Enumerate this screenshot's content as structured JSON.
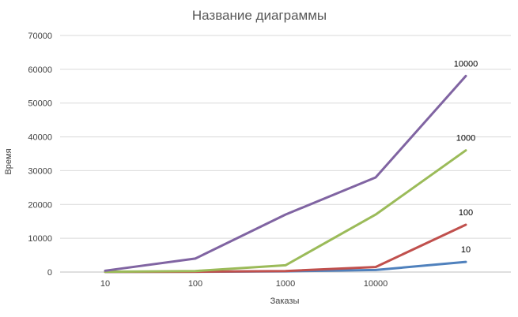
{
  "chart_data": {
    "type": "line",
    "title": "Название диаграммы",
    "xlabel": "Заказы",
    "ylabel": "Время",
    "categories": [
      "10",
      "100",
      "1000",
      "10000",
      ""
    ],
    "x_tick_labels": [
      "10",
      "100",
      "1000",
      "10000"
    ],
    "ylim": [
      0,
      70000
    ],
    "y_ticks": [
      0,
      10000,
      20000,
      30000,
      40000,
      50000,
      60000,
      70000
    ],
    "y_tick_labels": [
      "0",
      "10000",
      "20000",
      "30000",
      "40000",
      "50000",
      "60000",
      "70000"
    ],
    "grid": true,
    "legend": "none",
    "series": [
      {
        "name": "10",
        "color": "#4f81bd",
        "values": [
          50,
          100,
          200,
          600,
          3000
        ]
      },
      {
        "name": "100",
        "color": "#c0504d",
        "values": [
          50,
          100,
          300,
          1500,
          14000
        ]
      },
      {
        "name": "1000",
        "color": "#9bbb59",
        "values": [
          100,
          300,
          2000,
          17000,
          36000
        ]
      },
      {
        "name": "10000",
        "color": "#8064a2",
        "values": [
          400,
          4000,
          17000,
          28000,
          58000
        ]
      }
    ]
  }
}
